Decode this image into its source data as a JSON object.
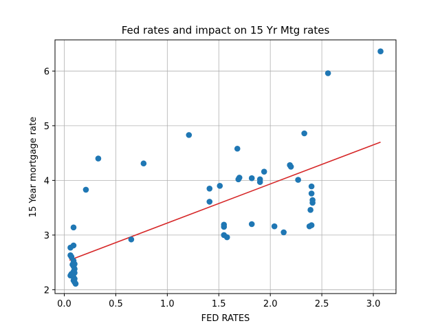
{
  "chart_data": {
    "type": "scatter",
    "title": "Fed rates and impact on 15 Yr Mtg rates",
    "xlabel": "FED RATES",
    "ylabel": "15 Year mortgage rate",
    "xlim": [
      -0.09,
      3.22
    ],
    "ylim": [
      1.93,
      6.57
    ],
    "xticks": [
      0.0,
      0.5,
      1.0,
      1.5,
      2.0,
      2.5,
      3.0
    ],
    "xtick_labels": [
      "0.0",
      "0.5",
      "1.0",
      "1.5",
      "2.0",
      "2.5",
      "3.0"
    ],
    "yticks": [
      2,
      3,
      4,
      5,
      6
    ],
    "ytick_labels": [
      "2",
      "3",
      "4",
      "5",
      "6"
    ],
    "grid": true,
    "colors": {
      "points": "#1f77b4",
      "trendline": "#d62728",
      "grid": "#b0b0b0"
    },
    "points": [
      {
        "x": 3.07,
        "y": 6.36
      },
      {
        "x": 2.56,
        "y": 5.96
      },
      {
        "x": 1.21,
        "y": 4.83
      },
      {
        "x": 2.33,
        "y": 4.86
      },
      {
        "x": 1.68,
        "y": 4.58
      },
      {
        "x": 0.33,
        "y": 4.4
      },
      {
        "x": 0.77,
        "y": 4.31
      },
      {
        "x": 2.19,
        "y": 4.28
      },
      {
        "x": 2.2,
        "y": 4.25
      },
      {
        "x": 1.94,
        "y": 4.16
      },
      {
        "x": 1.7,
        "y": 4.05
      },
      {
        "x": 1.69,
        "y": 4.02
      },
      {
        "x": 1.82,
        "y": 4.04
      },
      {
        "x": 1.9,
        "y": 4.02
      },
      {
        "x": 1.9,
        "y": 3.97
      },
      {
        "x": 2.27,
        "y": 4.01
      },
      {
        "x": 1.51,
        "y": 3.9
      },
      {
        "x": 1.41,
        "y": 3.85
      },
      {
        "x": 2.4,
        "y": 3.89
      },
      {
        "x": 0.21,
        "y": 3.83
      },
      {
        "x": 2.4,
        "y": 3.76
      },
      {
        "x": 2.41,
        "y": 3.64
      },
      {
        "x": 2.41,
        "y": 3.59
      },
      {
        "x": 1.41,
        "y": 3.61
      },
      {
        "x": 2.39,
        "y": 3.46
      },
      {
        "x": 1.55,
        "y": 3.19
      },
      {
        "x": 1.55,
        "y": 3.15
      },
      {
        "x": 1.82,
        "y": 3.2
      },
      {
        "x": 2.04,
        "y": 3.16
      },
      {
        "x": 2.38,
        "y": 3.16
      },
      {
        "x": 2.4,
        "y": 3.18
      },
      {
        "x": 2.13,
        "y": 3.05
      },
      {
        "x": 1.55,
        "y": 3.0
      },
      {
        "x": 1.58,
        "y": 2.96
      },
      {
        "x": 0.65,
        "y": 2.92
      },
      {
        "x": 0.09,
        "y": 3.14
      },
      {
        "x": 0.09,
        "y": 2.81
      },
      {
        "x": 0.06,
        "y": 2.77
      },
      {
        "x": 0.06,
        "y": 2.63
      },
      {
        "x": 0.07,
        "y": 2.6
      },
      {
        "x": 0.09,
        "y": 2.53
      },
      {
        "x": 0.1,
        "y": 2.47
      },
      {
        "x": 0.08,
        "y": 2.46
      },
      {
        "x": 0.09,
        "y": 2.43
      },
      {
        "x": 0.1,
        "y": 2.38
      },
      {
        "x": 0.09,
        "y": 2.33
      },
      {
        "x": 0.1,
        "y": 2.31
      },
      {
        "x": 0.07,
        "y": 2.29
      },
      {
        "x": 0.06,
        "y": 2.26
      },
      {
        "x": 0.08,
        "y": 2.27
      },
      {
        "x": 0.09,
        "y": 2.23
      },
      {
        "x": 0.1,
        "y": 2.2
      },
      {
        "x": 0.09,
        "y": 2.17
      },
      {
        "x": 0.1,
        "y": 2.14
      },
      {
        "x": 0.11,
        "y": 2.11
      }
    ],
    "trendline": {
      "x": [
        0.05,
        3.07
      ],
      "y": [
        2.54,
        4.7
      ]
    }
  }
}
